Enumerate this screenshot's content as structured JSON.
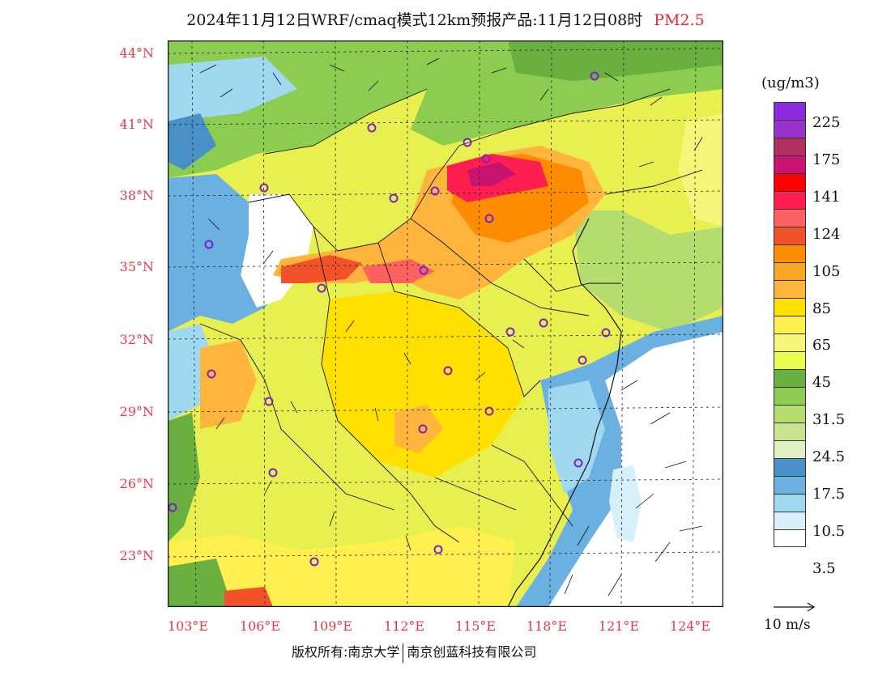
{
  "title": {
    "main": "2024年11月12日WRF/cmaq模式12km预报产品:11月12日08时",
    "pollutant": "PM2.5"
  },
  "axes": {
    "lat_labels": [
      "44°N",
      "41°N",
      "38°N",
      "35°N",
      "32°N",
      "29°N",
      "26°N",
      "23°N"
    ],
    "lon_labels": [
      "103°E",
      "106°E",
      "109°E",
      "112°E",
      "115°E",
      "118°E",
      "121°E",
      "124°E"
    ]
  },
  "legend": {
    "unit": "(ug/m3)",
    "labels": [
      "225",
      "175",
      "141",
      "124",
      "105",
      "85",
      "65",
      "45",
      "31.5",
      "24.5",
      "17.5",
      "10.5",
      "3.5"
    ],
    "colors": [
      "#8a2be2",
      "#9933cc",
      "#b03060",
      "#c8146e",
      "#ff0000",
      "#ff1e50",
      "#ff6060",
      "#f0522a",
      "#ff8c00",
      "#f5a623",
      "#ffb43c",
      "#ffe000",
      "#fff050",
      "#f5f57a",
      "#e8ff50",
      "#6ab040",
      "#8ccc50",
      "#b4dc6e",
      "#c8e48c",
      "#e0f0c0",
      "#4a90c8",
      "#6ab0e0",
      "#a0d8f0",
      "#d8f0fa",
      "#ffffff"
    ]
  },
  "wind_reference": {
    "label": "10 m/s"
  },
  "copyright": {
    "left": "版权所有:南京大学",
    "right": "南京创蓝科技有限公司"
  }
}
